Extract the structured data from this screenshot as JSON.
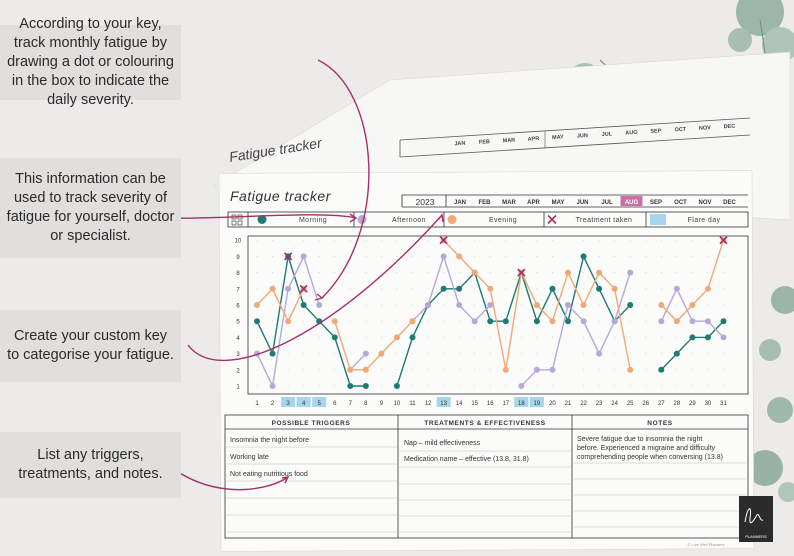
{
  "callouts": [
    "According to your key, track monthly fatigue by drawing a dot or colouring in the box to indicate the daily severity.",
    "This information can be used to track severity of fatigue for yourself, doctor or specialist.",
    "Create your custom key to categorise your fatigue.",
    "List any triggers, treatments, and notes."
  ],
  "sheet": {
    "title": "Fatigue tracker",
    "year": "2023",
    "months": [
      "JAN",
      "FEB",
      "MAR",
      "APR",
      "MAY",
      "JUN",
      "JUL",
      "AUG",
      "SEP",
      "OCT",
      "NOV",
      "DEC"
    ],
    "selected_month": "AUG",
    "key": [
      {
        "label": "Morning",
        "color": "#1e7a72",
        "shape": "dot"
      },
      {
        "label": "Afternoon",
        "color": "#b6a9d6",
        "shape": "dot"
      },
      {
        "label": "Evening",
        "color": "#efa876",
        "shape": "dot"
      },
      {
        "label": "Treatment taken",
        "color": "#a4306a",
        "shape": "cross"
      },
      {
        "label": "Flare day",
        "color": "#a7d5ec",
        "shape": "box"
      }
    ],
    "flare_days": [
      3,
      4,
      5,
      13,
      18,
      19
    ],
    "triggers_header": "POSSIBLE TRIGGERS",
    "triggers": [
      "Insomnia the night before",
      "Working late",
      "Not eating nutritious food"
    ],
    "treatments_header": "TREATMENTS & EFFECTIVENESS",
    "treatments": [
      "Nap – mild effectiveness",
      "Medication name – effective (13.8, 31.8)"
    ],
    "notes_header": "NOTES",
    "notes": [
      "Severe fatigue due to insomnia the night",
      "before. Experienced a migraine and difficulty",
      "comprehending people when conversing (13.8)"
    ],
    "copyright": "© Live Well Planners"
  },
  "brand": {
    "logo_text": "PLANNERS"
  },
  "chart_data": {
    "type": "line",
    "x": [
      1,
      2,
      3,
      4,
      5,
      6,
      7,
      8,
      9,
      10,
      11,
      12,
      13,
      14,
      15,
      16,
      17,
      18,
      19,
      20,
      21,
      22,
      23,
      24,
      25,
      26,
      27,
      28,
      29,
      30,
      31
    ],
    "ylim": [
      1,
      10
    ],
    "yticks": [
      1,
      2,
      3,
      4,
      5,
      6,
      7,
      8,
      9,
      10
    ],
    "series": [
      {
        "name": "Morning",
        "color": "#1e7a72",
        "values": [
          5,
          3,
          9,
          6,
          5,
          4,
          1,
          1,
          null,
          1,
          4,
          6,
          7,
          7,
          8,
          5,
          5,
          8,
          5,
          7,
          5,
          9,
          7,
          5,
          6,
          null,
          2,
          3,
          4,
          4,
          5
        ]
      },
      {
        "name": "Afternoon",
        "color": "#b6a9d6",
        "values": [
          3,
          1,
          7,
          9,
          6,
          null,
          2,
          3,
          null,
          null,
          5,
          6,
          9,
          6,
          5,
          6,
          null,
          1,
          2,
          2,
          6,
          5,
          3,
          5,
          8,
          null,
          5,
          7,
          5,
          5,
          4
        ]
      },
      {
        "name": "Evening",
        "color": "#efa876",
        "values": [
          6,
          7,
          5,
          7,
          null,
          5,
          2,
          2,
          3,
          4,
          5,
          null,
          10,
          9,
          8,
          7,
          2,
          8,
          6,
          5,
          8,
          6,
          8,
          7,
          2,
          null,
          6,
          5,
          6,
          7,
          10
        ]
      },
      {
        "name": "Treatment taken",
        "color": "#a4306a",
        "points": [
          {
            "x": 3,
            "y": 9
          },
          {
            "x": 4,
            "y": 7
          },
          {
            "x": 13,
            "y": 10
          },
          {
            "x": 18,
            "y": 8
          },
          {
            "x": 31,
            "y": 10
          }
        ]
      }
    ]
  }
}
